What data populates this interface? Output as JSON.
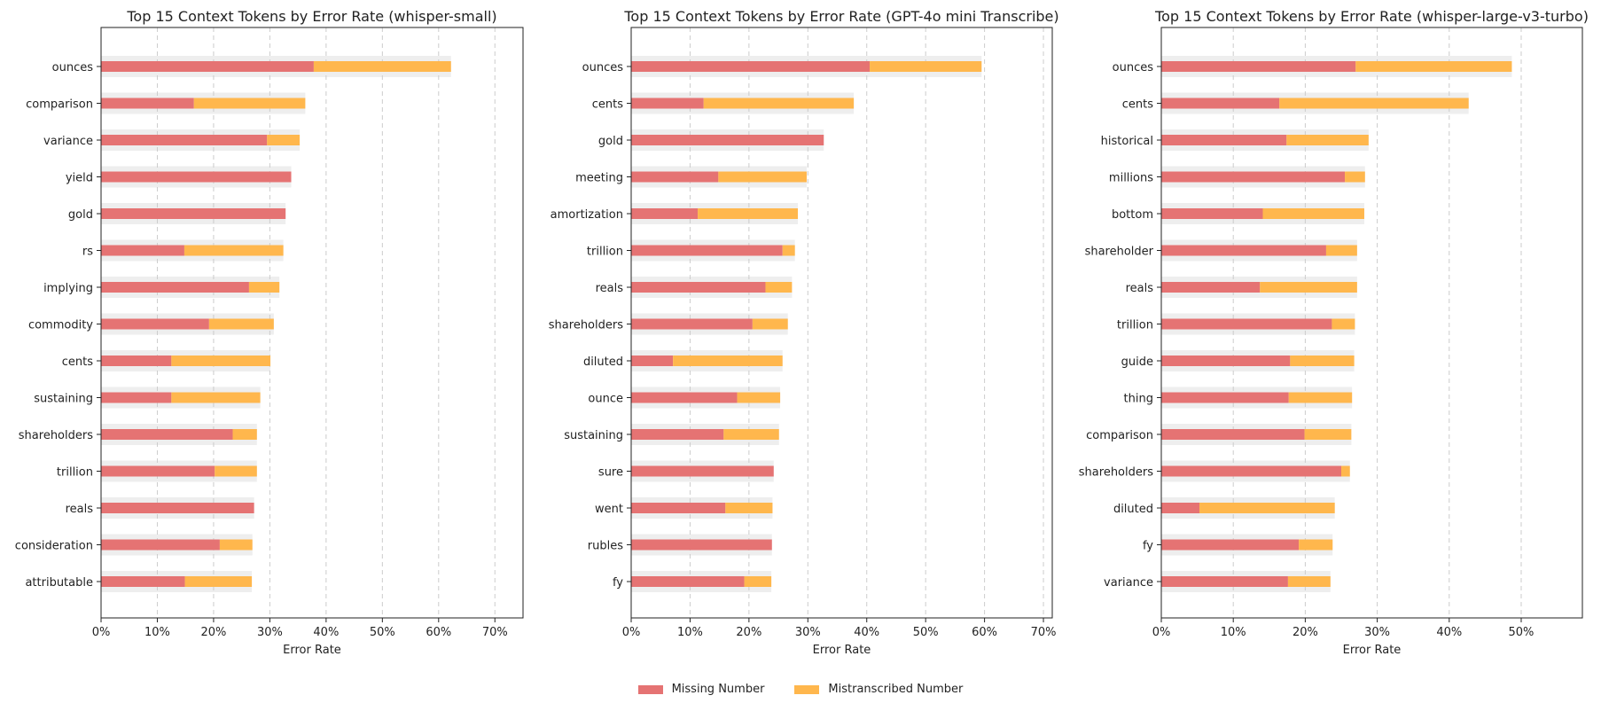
{
  "chart_data": [
    {
      "type": "bar",
      "orientation": "horizontal",
      "stacked": true,
      "title": "Top 15 Context Tokens by Error Rate (whisper-small)",
      "xlabel": "Error Rate",
      "ylabel": "",
      "xlim": [
        0,
        75
      ],
      "xticks": [
        "0%",
        "10%",
        "20%",
        "30%",
        "40%",
        "50%",
        "60%",
        "70%"
      ],
      "grid": "x-dashed",
      "categories": [
        "ounces",
        "comparison",
        "variance",
        "yield",
        "gold",
        "rs",
        "implying",
        "commodity",
        "cents",
        "sustaining",
        "shareholders",
        "trillion",
        "reals",
        "consideration",
        "attributable"
      ],
      "series": [
        {
          "name": "Missing Number",
          "values": [
            37.8,
            16.5,
            29.5,
            33.8,
            32.8,
            14.8,
            26.3,
            19.2,
            12.5,
            12.5,
            23.4,
            20.2,
            27.2,
            21.1,
            14.9
          ]
        },
        {
          "name": "Mistranscribed Number",
          "values": [
            24.4,
            19.8,
            5.8,
            0.0,
            0.0,
            17.6,
            5.4,
            11.5,
            17.6,
            15.8,
            4.3,
            7.5,
            0.0,
            5.8,
            11.9
          ]
        }
      ]
    },
    {
      "type": "bar",
      "orientation": "horizontal",
      "stacked": true,
      "title": "Top 15 Context Tokens by Error Rate (GPT-4o mini Transcribe)",
      "xlabel": "Error Rate",
      "ylabel": "",
      "xlim": [
        0,
        71.5
      ],
      "xticks": [
        "0%",
        "10%",
        "20%",
        "30%",
        "40%",
        "50%",
        "60%",
        "70%"
      ],
      "grid": "x-dashed",
      "categories": [
        "ounces",
        "cents",
        "gold",
        "meeting",
        "amortization",
        "trillion",
        "reals",
        "shareholders",
        "diluted",
        "ounce",
        "sustaining",
        "sure",
        "went",
        "rubles",
        "fy"
      ],
      "series": [
        {
          "name": "Missing Number",
          "values": [
            40.5,
            12.3,
            32.7,
            14.8,
            11.3,
            25.7,
            22.8,
            20.6,
            7.1,
            18.0,
            15.7,
            24.2,
            16.0,
            23.9,
            19.2
          ]
        },
        {
          "name": "Mistranscribed Number",
          "values": [
            19.0,
            25.5,
            0.0,
            15.0,
            17.0,
            2.1,
            4.5,
            6.0,
            18.6,
            7.3,
            9.4,
            0.0,
            8.0,
            0.0,
            4.6
          ]
        }
      ]
    },
    {
      "type": "bar",
      "orientation": "horizontal",
      "stacked": true,
      "title": "Top 15 Context Tokens by Error Rate (whisper-large-v3-turbo)",
      "xlabel": "Error Rate",
      "ylabel": "",
      "xlim": [
        0,
        58.5
      ],
      "xticks": [
        "0%",
        "10%",
        "20%",
        "30%",
        "40%",
        "50%"
      ],
      "grid": "x-dashed",
      "categories": [
        "ounces",
        "cents",
        "historical",
        "millions",
        "bottom",
        "shareholder",
        "reals",
        "trillion",
        "guide",
        "thing",
        "comparison",
        "shareholders",
        "diluted",
        "fy",
        "variance"
      ],
      "series": [
        {
          "name": "Missing Number",
          "values": [
            27.0,
            16.4,
            17.4,
            25.5,
            14.1,
            22.9,
            13.7,
            23.7,
            17.9,
            17.7,
            19.9,
            25.0,
            5.3,
            19.1,
            17.6
          ]
        },
        {
          "name": "Mistranscribed Number",
          "values": [
            21.7,
            26.3,
            11.4,
            2.8,
            14.1,
            4.3,
            13.5,
            3.2,
            8.9,
            8.8,
            6.5,
            1.2,
            18.8,
            4.7,
            5.9
          ]
        }
      ]
    }
  ],
  "legend": {
    "placement": "bottom-center",
    "items": [
      {
        "label": "Missing Number",
        "color": "#e57373"
      },
      {
        "label": "Mistranscribed Number",
        "color": "#ffb74d"
      }
    ]
  },
  "colors": {
    "missing": "#e57373",
    "mistranscribed": "#ffb74d",
    "background_band": "#eeeeee",
    "grid": "#cccccc"
  }
}
